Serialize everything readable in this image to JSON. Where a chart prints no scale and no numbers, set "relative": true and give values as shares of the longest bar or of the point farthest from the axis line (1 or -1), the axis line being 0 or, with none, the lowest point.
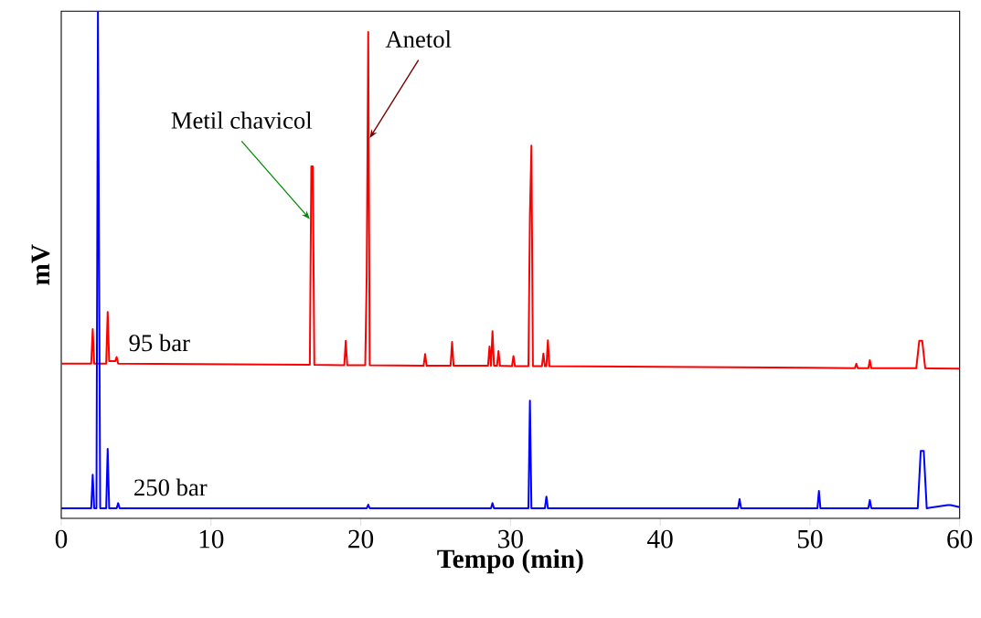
{
  "chart_data": {
    "type": "line",
    "relative": true,
    "xlabel": "Tempo (min)",
    "ylabel": "mV",
    "xlim": [
      0,
      60
    ],
    "xticks": [
      0,
      10,
      20,
      30,
      40,
      50,
      60
    ],
    "grid": false,
    "marker": "none",
    "line_style": "solid",
    "annotations": [
      {
        "text": "Metil chavicol",
        "x": 16.6,
        "y": 0.59
      },
      {
        "text": "Anetol",
        "x": 20.6,
        "y": 0.75
      }
    ],
    "series": [
      {
        "name": "95 bar",
        "color": "#ff0000",
        "x": [
          0,
          2.0,
          2.1,
          2.2,
          3.0,
          3.1,
          3.2,
          3.6,
          3.7,
          3.8,
          16.6,
          16.7,
          16.8,
          16.9,
          18.9,
          19.0,
          19.1,
          20.3,
          20.4,
          20.5,
          20.6,
          24.2,
          24.3,
          24.4,
          26.0,
          26.1,
          26.2,
          28.5,
          28.6,
          28.7,
          28.8,
          28.9,
          29.1,
          29.2,
          29.3,
          30.1,
          30.2,
          30.3,
          31.2,
          31.3,
          31.4,
          31.5,
          32.1,
          32.2,
          32.3,
          32.4,
          32.5,
          32.6,
          45.0,
          50.0,
          53.0,
          53.1,
          53.2,
          53.9,
          54.0,
          54.1,
          57.1,
          57.3,
          57.5,
          57.7,
          60
        ],
        "values": [
          0.305,
          0.305,
          0.373,
          0.305,
          0.305,
          0.407,
          0.31,
          0.31,
          0.318,
          0.305,
          0.303,
          0.694,
          0.694,
          0.303,
          0.302,
          0.35,
          0.302,
          0.302,
          0.48,
          0.959,
          0.302,
          0.301,
          0.324,
          0.301,
          0.301,
          0.348,
          0.301,
          0.301,
          0.339,
          0.301,
          0.369,
          0.301,
          0.301,
          0.33,
          0.301,
          0.3,
          0.32,
          0.3,
          0.3,
          0.6,
          0.735,
          0.3,
          0.3,
          0.325,
          0.3,
          0.3,
          0.351,
          0.3,
          0.298,
          0.297,
          0.296,
          0.305,
          0.296,
          0.296,
          0.312,
          0.296,
          0.296,
          0.35,
          0.35,
          0.296,
          0.295
        ]
      },
      {
        "name": "250 bar",
        "color": "#0000ff",
        "x": [
          0,
          2.0,
          2.1,
          2.2,
          2.35,
          2.45,
          2.6,
          3.0,
          3.1,
          3.2,
          3.7,
          3.8,
          3.9,
          20.4,
          20.5,
          20.6,
          28.7,
          28.8,
          28.9,
          31.2,
          31.3,
          31.4,
          32.3,
          32.4,
          32.5,
          45.2,
          45.3,
          45.4,
          50.5,
          50.6,
          50.7,
          53.9,
          54.0,
          54.1,
          57.2,
          57.4,
          57.6,
          57.8,
          59.2,
          59.4,
          60
        ],
        "values": [
          0.02,
          0.02,
          0.086,
          0.02,
          0.02,
          1.0,
          0.02,
          0.02,
          0.137,
          0.02,
          0.02,
          0.03,
          0.02,
          0.02,
          0.027,
          0.02,
          0.02,
          0.03,
          0.02,
          0.02,
          0.232,
          0.02,
          0.02,
          0.043,
          0.02,
          0.02,
          0.038,
          0.02,
          0.02,
          0.054,
          0.02,
          0.02,
          0.036,
          0.02,
          0.02,
          0.133,
          0.133,
          0.02,
          0.026,
          0.026,
          0.022
        ]
      }
    ]
  }
}
